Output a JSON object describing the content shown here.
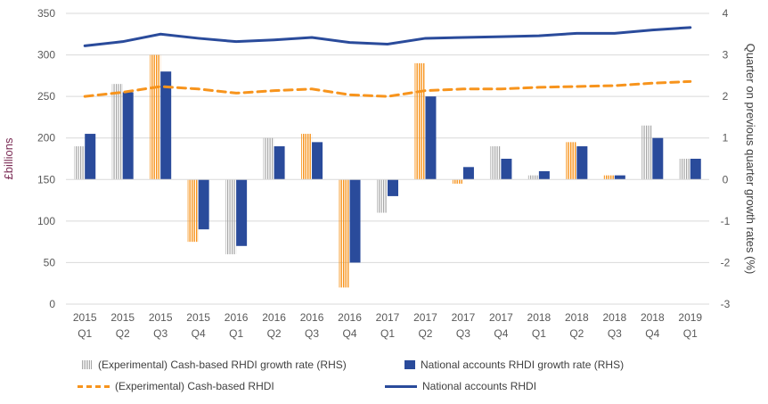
{
  "chart_data": {
    "type": "bar+line",
    "categories": [
      [
        "2015",
        "Q1"
      ],
      [
        "2015",
        "Q2"
      ],
      [
        "2015",
        "Q3"
      ],
      [
        "2015",
        "Q4"
      ],
      [
        "2016",
        "Q1"
      ],
      [
        "2016",
        "Q2"
      ],
      [
        "2016",
        "Q3"
      ],
      [
        "2016",
        "Q4"
      ],
      [
        "2017",
        "Q1"
      ],
      [
        "2017",
        "Q2"
      ],
      [
        "2017",
        "Q3"
      ],
      [
        "2017",
        "Q4"
      ],
      [
        "2018",
        "Q1"
      ],
      [
        "2018",
        "Q2"
      ],
      [
        "2018",
        "Q3"
      ],
      [
        "2018",
        "Q4"
      ],
      [
        "2019",
        "Q1"
      ]
    ],
    "ylabel": "£billions",
    "y2label": "Quarter on previous quarter growth rates (%)",
    "ylim": [
      0,
      350
    ],
    "yticks": [
      0,
      50,
      100,
      150,
      200,
      250,
      300,
      350
    ],
    "y2lim": [
      -3,
      4
    ],
    "y2ticks": [
      -3,
      -2,
      -1,
      0,
      1,
      2,
      3,
      4
    ],
    "grid": true,
    "legend_position": "bottom",
    "bar_series": [
      {
        "name": "(Experimental) Cash-based RHDI growth rate (RHS)",
        "axis": "right",
        "color": "#a6a6a6",
        "highlight_color": "#f7941d",
        "values": [
          0.8,
          2.3,
          3.0,
          -1.5,
          -1.8,
          1.0,
          1.1,
          -2.6,
          -0.8,
          2.8,
          -0.1,
          0.8,
          0.1,
          0.9,
          0.1,
          1.3,
          0.5
        ],
        "highlighted": [
          false,
          false,
          true,
          true,
          false,
          false,
          true,
          true,
          false,
          true,
          true,
          false,
          false,
          true,
          true,
          false,
          false
        ]
      },
      {
        "name": "National accounts RHDI growth rate (RHS)",
        "axis": "right",
        "color": "#2a4b9b",
        "values": [
          1.1,
          2.1,
          2.6,
          -1.2,
          -1.6,
          0.8,
          0.9,
          -2.0,
          -0.4,
          2.0,
          0.3,
          0.5,
          0.2,
          0.8,
          0.1,
          1.0,
          0.5
        ]
      }
    ],
    "line_series": [
      {
        "name": "(Experimental) Cash-based RHDI",
        "axis": "left",
        "color": "#f7941d",
        "dashed": true,
        "values": [
          250,
          255,
          262,
          259,
          254,
          257,
          259,
          252,
          250,
          257,
          259,
          259,
          261,
          262,
          263,
          266,
          268
        ]
      },
      {
        "name": "National accounts RHDI",
        "axis": "left",
        "color": "#2a4b9b",
        "dashed": false,
        "values": [
          311,
          316,
          325,
          320,
          316,
          318,
          321,
          315,
          313,
          320,
          321,
          322,
          323,
          326,
          326,
          330,
          333
        ]
      }
    ]
  }
}
